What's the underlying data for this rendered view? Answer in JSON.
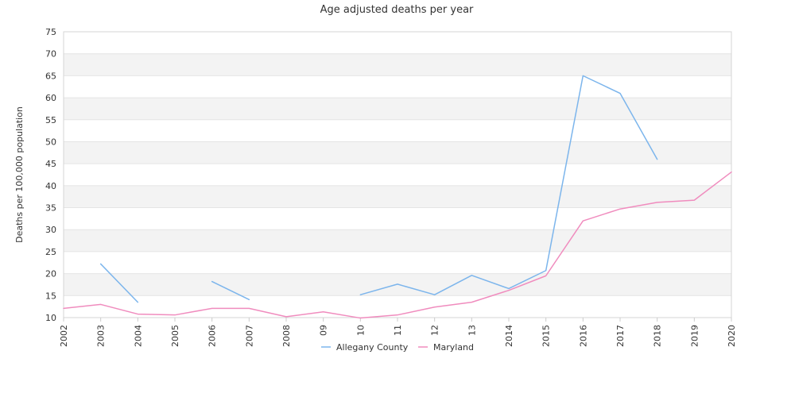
{
  "chart_data": {
    "type": "line",
    "title": "Age adjusted deaths per year",
    "ylabel": "Deaths per 100,000 population",
    "xlabel": "",
    "ylim": [
      10,
      75
    ],
    "yticks": [
      "10",
      "15",
      "20",
      "25",
      "30",
      "35",
      "40",
      "45",
      "50",
      "55",
      "60",
      "65",
      "70",
      "75"
    ],
    "categories": [
      "2002",
      "2003",
      "2004",
      "2005",
      "2006",
      "2007",
      "2008",
      "09",
      "10",
      "11",
      "12",
      "13",
      "2014",
      "2015",
      "2016",
      "2017",
      "2018",
      "2019",
      "2020"
    ],
    "legend_position": "bottom",
    "grid": "alternating horizontal bands",
    "series": [
      {
        "name": "Allegany County",
        "color": "#7cb5ec",
        "values": [
          null,
          22.2,
          13.5,
          null,
          18.2,
          14.1,
          null,
          null,
          15.2,
          17.6,
          15.2,
          19.6,
          16.6,
          20.7,
          65.0,
          61.0,
          46.0,
          null,
          null
        ]
      },
      {
        "name": "Maryland",
        "color": "#f08cbe",
        "values": [
          12.1,
          13.0,
          10.8,
          10.6,
          12.1,
          12.1,
          10.2,
          11.3,
          9.9,
          10.6,
          12.4,
          13.5,
          16.2,
          19.5,
          32.0,
          34.7,
          36.2,
          36.7,
          43.1
        ]
      }
    ]
  }
}
